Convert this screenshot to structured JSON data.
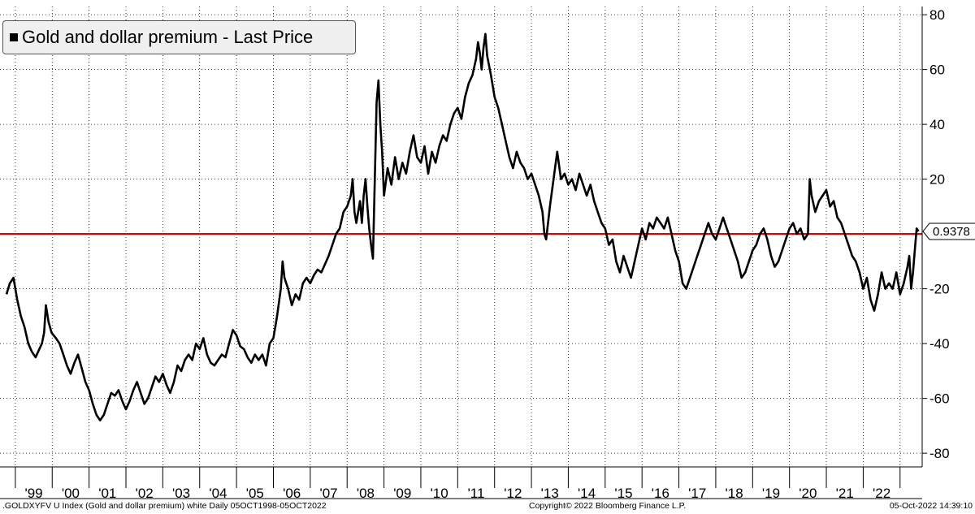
{
  "chart_data": {
    "type": "line",
    "title": "Gold and dollar premium - Last Price",
    "legend": [
      "Gold and dollar premium - Last Price"
    ],
    "legend_position": "top-left",
    "series": [
      {
        "name": "Gold and dollar premium - Last Price",
        "color": "#000000",
        "points": [
          [
            1998.76,
            -22
          ],
          [
            1998.85,
            -18
          ],
          [
            1998.95,
            -16
          ],
          [
            1999.05,
            -24
          ],
          [
            1999.15,
            -30
          ],
          [
            1999.25,
            -34
          ],
          [
            1999.35,
            -40
          ],
          [
            1999.45,
            -43
          ],
          [
            1999.55,
            -45
          ],
          [
            1999.65,
            -42
          ],
          [
            1999.72,
            -40
          ],
          [
            1999.78,
            -36
          ],
          [
            1999.83,
            -26
          ],
          [
            1999.9,
            -32
          ],
          [
            1999.98,
            -36
          ],
          [
            2000.1,
            -38
          ],
          [
            2000.2,
            -40
          ],
          [
            2000.3,
            -44
          ],
          [
            2000.4,
            -48
          ],
          [
            2000.5,
            -51
          ],
          [
            2000.6,
            -47
          ],
          [
            2000.7,
            -44
          ],
          [
            2000.8,
            -49
          ],
          [
            2000.9,
            -54
          ],
          [
            2001.0,
            -57
          ],
          [
            2001.1,
            -62
          ],
          [
            2001.2,
            -66
          ],
          [
            2001.3,
            -68
          ],
          [
            2001.4,
            -66
          ],
          [
            2001.5,
            -62
          ],
          [
            2001.6,
            -58
          ],
          [
            2001.7,
            -59
          ],
          [
            2001.8,
            -57
          ],
          [
            2001.9,
            -61
          ],
          [
            2002.0,
            -64
          ],
          [
            2002.1,
            -61
          ],
          [
            2002.2,
            -57
          ],
          [
            2002.3,
            -54
          ],
          [
            2002.4,
            -58
          ],
          [
            2002.5,
            -62
          ],
          [
            2002.6,
            -60
          ],
          [
            2002.7,
            -56
          ],
          [
            2002.8,
            -52
          ],
          [
            2002.9,
            -54
          ],
          [
            2003.0,
            -51
          ],
          [
            2003.1,
            -55
          ],
          [
            2003.2,
            -58
          ],
          [
            2003.3,
            -54
          ],
          [
            2003.4,
            -48
          ],
          [
            2003.5,
            -50
          ],
          [
            2003.6,
            -46
          ],
          [
            2003.7,
            -44
          ],
          [
            2003.8,
            -46
          ],
          [
            2003.9,
            -40
          ],
          [
            2004.0,
            -42
          ],
          [
            2004.1,
            -38
          ],
          [
            2004.2,
            -44
          ],
          [
            2004.3,
            -47
          ],
          [
            2004.4,
            -48
          ],
          [
            2004.5,
            -46
          ],
          [
            2004.6,
            -44
          ],
          [
            2004.7,
            -45
          ],
          [
            2004.8,
            -40
          ],
          [
            2004.9,
            -35
          ],
          [
            2005.0,
            -37
          ],
          [
            2005.1,
            -41
          ],
          [
            2005.2,
            -42
          ],
          [
            2005.3,
            -45
          ],
          [
            2005.4,
            -47
          ],
          [
            2005.5,
            -44
          ],
          [
            2005.6,
            -46
          ],
          [
            2005.7,
            -44
          ],
          [
            2005.8,
            -48
          ],
          [
            2005.9,
            -40
          ],
          [
            2006.0,
            -38
          ],
          [
            2006.1,
            -30
          ],
          [
            2006.2,
            -20
          ],
          [
            2006.25,
            -10
          ],
          [
            2006.3,
            -16
          ],
          [
            2006.4,
            -20
          ],
          [
            2006.5,
            -26
          ],
          [
            2006.6,
            -22
          ],
          [
            2006.7,
            -24
          ],
          [
            2006.8,
            -18
          ],
          [
            2006.9,
            -16
          ],
          [
            2007.0,
            -18
          ],
          [
            2007.1,
            -15
          ],
          [
            2007.2,
            -13
          ],
          [
            2007.3,
            -14
          ],
          [
            2007.4,
            -11
          ],
          [
            2007.5,
            -8
          ],
          [
            2007.6,
            -4
          ],
          [
            2007.7,
            0
          ],
          [
            2007.8,
            2
          ],
          [
            2007.9,
            8
          ],
          [
            2008.0,
            10
          ],
          [
            2008.1,
            14
          ],
          [
            2008.15,
            20
          ],
          [
            2008.2,
            8
          ],
          [
            2008.25,
            4
          ],
          [
            2008.3,
            8
          ],
          [
            2008.35,
            12
          ],
          [
            2008.4,
            4
          ],
          [
            2008.45,
            14
          ],
          [
            2008.5,
            20
          ],
          [
            2008.55,
            10
          ],
          [
            2008.6,
            2
          ],
          [
            2008.65,
            -4
          ],
          [
            2008.7,
            -9
          ],
          [
            2008.75,
            20
          ],
          [
            2008.8,
            48
          ],
          [
            2008.85,
            56
          ],
          [
            2008.9,
            40
          ],
          [
            2008.95,
            30
          ],
          [
            2009.0,
            14
          ],
          [
            2009.1,
            24
          ],
          [
            2009.2,
            18
          ],
          [
            2009.3,
            28
          ],
          [
            2009.4,
            20
          ],
          [
            2009.5,
            26
          ],
          [
            2009.6,
            22
          ],
          [
            2009.7,
            30
          ],
          [
            2009.8,
            36
          ],
          [
            2009.9,
            28
          ],
          [
            2010.0,
            26
          ],
          [
            2010.1,
            32
          ],
          [
            2010.2,
            22
          ],
          [
            2010.3,
            30
          ],
          [
            2010.4,
            26
          ],
          [
            2010.5,
            32
          ],
          [
            2010.6,
            36
          ],
          [
            2010.7,
            34
          ],
          [
            2010.8,
            40
          ],
          [
            2010.9,
            44
          ],
          [
            2011.0,
            46
          ],
          [
            2011.1,
            42
          ],
          [
            2011.2,
            50
          ],
          [
            2011.3,
            55
          ],
          [
            2011.4,
            58
          ],
          [
            2011.5,
            64
          ],
          [
            2011.55,
            70
          ],
          [
            2011.6,
            66
          ],
          [
            2011.65,
            60
          ],
          [
            2011.7,
            68
          ],
          [
            2011.75,
            73
          ],
          [
            2011.8,
            65
          ],
          [
            2011.9,
            58
          ],
          [
            2012.0,
            50
          ],
          [
            2012.1,
            46
          ],
          [
            2012.2,
            40
          ],
          [
            2012.3,
            34
          ],
          [
            2012.4,
            28
          ],
          [
            2012.5,
            24
          ],
          [
            2012.6,
            30
          ],
          [
            2012.7,
            26
          ],
          [
            2012.8,
            24
          ],
          [
            2012.9,
            20
          ],
          [
            2013.0,
            22
          ],
          [
            2013.1,
            18
          ],
          [
            2013.2,
            14
          ],
          [
            2013.3,
            8
          ],
          [
            2013.35,
            0
          ],
          [
            2013.4,
            -2
          ],
          [
            2013.5,
            10
          ],
          [
            2013.6,
            20
          ],
          [
            2013.7,
            30
          ],
          [
            2013.8,
            20
          ],
          [
            2013.9,
            22
          ],
          [
            2014.0,
            18
          ],
          [
            2014.1,
            20
          ],
          [
            2014.2,
            16
          ],
          [
            2014.3,
            22
          ],
          [
            2014.4,
            18
          ],
          [
            2014.5,
            14
          ],
          [
            2014.6,
            18
          ],
          [
            2014.7,
            12
          ],
          [
            2014.8,
            8
          ],
          [
            2014.9,
            4
          ],
          [
            2015.0,
            2
          ],
          [
            2015.1,
            -4
          ],
          [
            2015.2,
            -2
          ],
          [
            2015.3,
            -10
          ],
          [
            2015.4,
            -14
          ],
          [
            2015.5,
            -8
          ],
          [
            2015.6,
            -12
          ],
          [
            2015.7,
            -16
          ],
          [
            2015.8,
            -10
          ],
          [
            2015.9,
            -4
          ],
          [
            2016.0,
            2
          ],
          [
            2016.1,
            -2
          ],
          [
            2016.2,
            4
          ],
          [
            2016.3,
            2
          ],
          [
            2016.4,
            6
          ],
          [
            2016.5,
            4
          ],
          [
            2016.6,
            2
          ],
          [
            2016.7,
            6
          ],
          [
            2016.8,
            0
          ],
          [
            2016.9,
            -6
          ],
          [
            2017.0,
            -10
          ],
          [
            2017.1,
            -18
          ],
          [
            2017.2,
            -20
          ],
          [
            2017.3,
            -16
          ],
          [
            2017.4,
            -12
          ],
          [
            2017.5,
            -8
          ],
          [
            2017.6,
            -4
          ],
          [
            2017.7,
            0
          ],
          [
            2017.8,
            4
          ],
          [
            2017.9,
            0
          ],
          [
            2018.0,
            -2
          ],
          [
            2018.1,
            2
          ],
          [
            2018.2,
            6
          ],
          [
            2018.3,
            2
          ],
          [
            2018.4,
            -2
          ],
          [
            2018.5,
            -6
          ],
          [
            2018.6,
            -10
          ],
          [
            2018.7,
            -16
          ],
          [
            2018.8,
            -14
          ],
          [
            2018.9,
            -10
          ],
          [
            2019.0,
            -6
          ],
          [
            2019.1,
            -4
          ],
          [
            2019.2,
            0
          ],
          [
            2019.3,
            2
          ],
          [
            2019.4,
            -2
          ],
          [
            2019.5,
            -8
          ],
          [
            2019.6,
            -12
          ],
          [
            2019.7,
            -10
          ],
          [
            2019.8,
            -6
          ],
          [
            2019.9,
            -2
          ],
          [
            2020.0,
            2
          ],
          [
            2020.1,
            4
          ],
          [
            2020.2,
            0
          ],
          [
            2020.3,
            2
          ],
          [
            2020.4,
            -2
          ],
          [
            2020.5,
            0
          ],
          [
            2020.55,
            20
          ],
          [
            2020.6,
            14
          ],
          [
            2020.7,
            8
          ],
          [
            2020.8,
            12
          ],
          [
            2020.9,
            14
          ],
          [
            2021.0,
            16
          ],
          [
            2021.1,
            10
          ],
          [
            2021.2,
            12
          ],
          [
            2021.3,
            6
          ],
          [
            2021.4,
            4
          ],
          [
            2021.5,
            0
          ],
          [
            2021.6,
            -4
          ],
          [
            2021.7,
            -8
          ],
          [
            2021.8,
            -10
          ],
          [
            2021.9,
            -14
          ],
          [
            2022.0,
            -20
          ],
          [
            2022.1,
            -16
          ],
          [
            2022.2,
            -24
          ],
          [
            2022.3,
            -28
          ],
          [
            2022.4,
            -22
          ],
          [
            2022.5,
            -14
          ],
          [
            2022.6,
            -20
          ],
          [
            2022.7,
            -18
          ],
          [
            2022.8,
            -20
          ],
          [
            2022.9,
            -14
          ],
          [
            2023.0,
            -22
          ],
          [
            2023.1,
            -18
          ],
          [
            2023.2,
            -12
          ],
          [
            2023.25,
            -8
          ],
          [
            2023.3,
            -20
          ],
          [
            2023.35,
            -14
          ],
          [
            2023.4,
            -6
          ],
          [
            2023.45,
            2
          ],
          [
            2023.5,
            0.94
          ]
        ]
      }
    ],
    "reference_line": {
      "value": 0,
      "color": "#e00000"
    },
    "last_value_label": "0.9378",
    "y_axis": {
      "position": "right",
      "ticks": [
        80,
        60,
        40,
        20,
        -20,
        -40,
        -60,
        -80
      ],
      "ylim": [
        -85,
        83
      ]
    },
    "xlim": [
      1998.76,
      2023.6
    ],
    "x_ticks": [
      {
        "label": "'99",
        "x": 1999.5
      },
      {
        "label": "'00",
        "x": 2000.5
      },
      {
        "label": "'01",
        "x": 2001.5
      },
      {
        "label": "'02",
        "x": 2002.5
      },
      {
        "label": "'03",
        "x": 2003.5
      },
      {
        "label": "'04",
        "x": 2004.5
      },
      {
        "label": "'05",
        "x": 2005.5
      },
      {
        "label": "'06",
        "x": 2006.5
      },
      {
        "label": "'07",
        "x": 2007.5
      },
      {
        "label": "'08",
        "x": 2008.5
      },
      {
        "label": "'09",
        "x": 2009.5
      },
      {
        "label": "'10",
        "x": 2010.5
      },
      {
        "label": "'11",
        "x": 2011.5
      },
      {
        "label": "'12",
        "x": 2012.5
      },
      {
        "label": "'13",
        "x": 2013.5
      },
      {
        "label": "'14",
        "x": 2014.5
      },
      {
        "label": "'15",
        "x": 2015.5
      },
      {
        "label": "'16",
        "x": 2016.5
      },
      {
        "label": "'17",
        "x": 2017.5
      },
      {
        "label": "'18",
        "x": 2018.5
      },
      {
        "label": "'19",
        "x": 2019.5
      },
      {
        "label": "'20",
        "x": 2020.5
      },
      {
        "label": "'21",
        "x": 2021.5
      },
      {
        "label": "'22",
        "x": 2022.5
      }
    ],
    "x_boundaries": [
      1999.0,
      2000.0,
      2001.0,
      2002.0,
      2003.0,
      2004.0,
      2005.0,
      2006.0,
      2007.0,
      2008.0,
      2009.0,
      2010.0,
      2011.0,
      2012.0,
      2013.0,
      2014.0,
      2015.0,
      2016.0,
      2017.0,
      2018.0,
      2019.0,
      2020.0,
      2021.0,
      2022.0,
      2023.0
    ],
    "grid": true
  },
  "footer": {
    "left": ".GOLDXYFV U Index (Gold and dollar premium) white  Daily 05OCT1998-05OCT2022",
    "center": "Copyright© 2022 Bloomberg Finance L.P.",
    "right": "05-Oct-2022 14:39:10"
  }
}
